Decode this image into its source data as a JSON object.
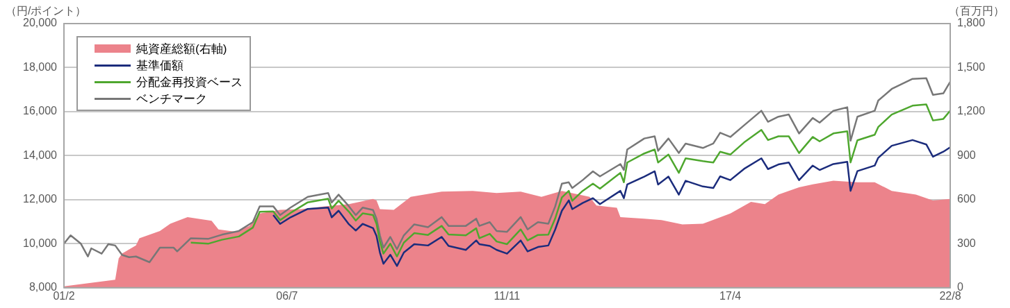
{
  "chart_data": {
    "type": "line",
    "ylabel": "（円/ポイント）",
    "y2label": "（百万円）",
    "xlim": [
      "2001-02",
      "2022-08"
    ],
    "xticks": [
      {
        "value": "2001-02",
        "label": "01/2"
      },
      {
        "value": "2006-07",
        "label": "06/7"
      },
      {
        "value": "2011-11",
        "label": "11/11"
      },
      {
        "value": "2017-04",
        "label": "17/4"
      },
      {
        "value": "2022-08",
        "label": "22/8"
      }
    ],
    "ylim": [
      8000,
      20000
    ],
    "yticks": [
      {
        "value": 8000,
        "label": "8,000"
      },
      {
        "value": 10000,
        "label": "10,000"
      },
      {
        "value": 12000,
        "label": "12,000"
      },
      {
        "value": 14000,
        "label": "14,000"
      },
      {
        "value": 16000,
        "label": "16,000"
      },
      {
        "value": 18000,
        "label": "18,000"
      },
      {
        "value": 20000,
        "label": "20,000"
      }
    ],
    "y2lim": [
      0,
      1800
    ],
    "y2ticks": [
      0,
      300,
      600,
      900,
      {
        "value": 1200,
        "label": "1,200"
      },
      {
        "value": 1500,
        "label": "1,500"
      },
      {
        "value": 1800,
        "label": "1,800"
      }
    ],
    "grid": "y",
    "legend": "top left",
    "series": [
      {
        "name": "純資産総額(右軸)",
        "type": "area",
        "axis": "y2",
        "color": "#ec838b",
        "x": [
          "2001-02",
          "2002-05",
          "2002-06",
          "2002-07",
          "2002-11",
          "2002-12",
          "2003-06",
          "2003-09",
          "2004-02",
          "2004-05",
          "2004-09",
          "2004-11",
          "2005-04",
          "2005-08",
          "2005-11",
          "2006-05",
          "2006-11",
          "2007-06",
          "2008-01",
          "2008-08",
          "2008-09",
          "2008-10",
          "2009-02",
          "2009-07",
          "2010-04",
          "2011-01",
          "2011-08",
          "2012-03",
          "2012-09",
          "2013-03",
          "2013-11",
          "2014-01",
          "2014-07",
          "2014-08",
          "2015-03",
          "2015-08",
          "2016-02",
          "2016-08",
          "2017-04",
          "2017-10",
          "2018-02",
          "2018-06",
          "2018-12",
          "2019-04",
          "2019-10",
          "2020-05",
          "2020-10",
          "2021-03",
          "2021-10",
          "2022-03",
          "2022-08"
        ],
        "values": [
          10,
          55,
          200,
          233,
          288,
          337,
          387,
          436,
          481,
          471,
          456,
          397,
          382,
          421,
          506,
          531,
          536,
          555,
          570,
          605,
          595,
          536,
          531,
          620,
          655,
          660,
          645,
          655,
          620,
          660,
          620,
          560,
          545,
          481,
          471,
          461,
          431,
          436,
          506,
          585,
          570,
          635,
          684,
          704,
          729,
          719,
          719,
          660,
          635,
          595,
          605
        ]
      },
      {
        "name": "基準価額",
        "type": "line",
        "color": "#1b2c7c",
        "x": [
          "2006-03",
          "2006-05",
          "2006-08",
          "2007-01",
          "2007-07",
          "2007-08",
          "2007-10",
          "2008-01",
          "2008-03",
          "2008-05",
          "2008-08",
          "2008-09",
          "2008-10",
          "2008-11",
          "2009-01",
          "2009-03",
          "2009-05",
          "2009-08",
          "2009-12",
          "2010-04",
          "2010-06",
          "2010-11",
          "2011-02",
          "2011-03",
          "2011-06",
          "2011-08",
          "2011-11",
          "2012-03",
          "2012-05",
          "2012-08",
          "2012-11",
          "2013-01",
          "2013-03",
          "2013-05",
          "2013-06",
          "2013-09",
          "2013-12",
          "2014-02",
          "2014-08",
          "2014-09",
          "2014-10",
          "2015-03",
          "2015-06",
          "2015-07",
          "2015-10",
          "2016-01",
          "2016-03",
          "2016-08",
          "2016-11",
          "2017-01",
          "2017-04",
          "2017-08",
          "2018-01",
          "2018-03",
          "2018-06",
          "2018-09",
          "2018-12",
          "2019-04",
          "2019-06",
          "2019-10",
          "2020-02",
          "2020-03",
          "2020-05",
          "2020-10",
          "2020-11",
          "2021-03",
          "2021-09",
          "2022-01",
          "2022-03",
          "2022-06",
          "2022-08"
        ],
        "values": [
          11300,
          10900,
          11200,
          11580,
          11640,
          11200,
          11500,
          10880,
          10600,
          10900,
          10710,
          10350,
          9600,
          9090,
          9500,
          8990,
          9600,
          9980,
          9920,
          10310,
          9900,
          9720,
          10150,
          9980,
          9900,
          9720,
          9550,
          10150,
          9650,
          9850,
          9920,
          10650,
          11500,
          11970,
          11570,
          11850,
          12070,
          11800,
          12400,
          12070,
          12690,
          13050,
          13290,
          12690,
          13050,
          12230,
          12860,
          12600,
          12530,
          13060,
          12890,
          13400,
          13880,
          13390,
          13600,
          13690,
          12890,
          13550,
          13350,
          13620,
          13720,
          12400,
          13300,
          13550,
          13900,
          14450,
          14710,
          14510,
          13950,
          14180,
          14380
        ]
      },
      {
        "name": "分配金再投資ベース",
        "type": "line",
        "color": "#4ea72e",
        "x": [
          "2004-03",
          "2004-08",
          "2004-12",
          "2005-05",
          "2005-09",
          "2005-11",
          "2006-03",
          "2006-05",
          "2006-08",
          "2007-01",
          "2007-07",
          "2007-08",
          "2007-10",
          "2008-01",
          "2008-03",
          "2008-05",
          "2008-08",
          "2008-09",
          "2008-10",
          "2008-11",
          "2009-01",
          "2009-03",
          "2009-05",
          "2009-08",
          "2009-12",
          "2010-04",
          "2010-06",
          "2010-11",
          "2011-02",
          "2011-03",
          "2011-06",
          "2011-08",
          "2011-11",
          "2012-03",
          "2012-05",
          "2012-08",
          "2012-11",
          "2013-01",
          "2013-03",
          "2013-05",
          "2013-06",
          "2013-09",
          "2013-12",
          "2014-02",
          "2014-08",
          "2014-09",
          "2014-10",
          "2015-03",
          "2015-06",
          "2015-07",
          "2015-10",
          "2016-01",
          "2016-03",
          "2016-08",
          "2016-11",
          "2017-01",
          "2017-04",
          "2017-08",
          "2018-01",
          "2018-03",
          "2018-06",
          "2018-09",
          "2018-12",
          "2019-04",
          "2019-06",
          "2019-10",
          "2020-02",
          "2020-03",
          "2020-05",
          "2020-10",
          "2020-11",
          "2021-03",
          "2021-09",
          "2022-01",
          "2022-03",
          "2022-06",
          "2022-08"
        ],
        "values": [
          10050,
          10000,
          10180,
          10330,
          10730,
          11450,
          11470,
          11070,
          11400,
          11880,
          12040,
          11600,
          11950,
          11450,
          11050,
          11380,
          11300,
          10900,
          10100,
          9550,
          10000,
          9420,
          10050,
          10480,
          10400,
          10810,
          10420,
          10380,
          10700,
          10250,
          10450,
          10100,
          9980,
          10650,
          10150,
          10400,
          10410,
          11150,
          12100,
          12400,
          11950,
          12400,
          12730,
          12500,
          13220,
          12790,
          13690,
          14100,
          14280,
          13690,
          14050,
          13220,
          13880,
          13750,
          13690,
          14180,
          14050,
          14600,
          15170,
          14710,
          14880,
          14880,
          14120,
          14850,
          14650,
          15010,
          15110,
          13690,
          14700,
          14950,
          15300,
          15870,
          16270,
          16330,
          15600,
          15670,
          16040
        ]
      },
      {
        "name": "ベンチマーク",
        "type": "line",
        "color": "#777777",
        "x": [
          "2001-02",
          "2001-04",
          "2001-07",
          "2001-09",
          "2001-10",
          "2002-01",
          "2002-03",
          "2002-05",
          "2002-07",
          "2002-09",
          "2002-11",
          "2003-03",
          "2003-06",
          "2003-10",
          "2003-11",
          "2004-03",
          "2004-08",
          "2004-12",
          "2005-05",
          "2005-09",
          "2005-11",
          "2006-03",
          "2006-05",
          "2006-08",
          "2007-01",
          "2007-07",
          "2007-08",
          "2007-10",
          "2008-01",
          "2008-03",
          "2008-05",
          "2008-08",
          "2008-09",
          "2008-10",
          "2008-11",
          "2009-01",
          "2009-03",
          "2009-05",
          "2009-08",
          "2009-12",
          "2010-04",
          "2010-06",
          "2010-11",
          "2011-02",
          "2011-03",
          "2011-06",
          "2011-08",
          "2011-11",
          "2012-03",
          "2012-05",
          "2012-08",
          "2012-11",
          "2013-01",
          "2013-03",
          "2013-05",
          "2013-06",
          "2013-09",
          "2013-12",
          "2014-02",
          "2014-08",
          "2014-09",
          "2014-10",
          "2015-03",
          "2015-06",
          "2015-07",
          "2015-10",
          "2016-01",
          "2016-03",
          "2016-08",
          "2016-11",
          "2017-01",
          "2017-04",
          "2017-08",
          "2018-01",
          "2018-03",
          "2018-06",
          "2018-09",
          "2018-12",
          "2019-04",
          "2019-06",
          "2019-10",
          "2020-02",
          "2020-03",
          "2020-05",
          "2020-10",
          "2020-11",
          "2021-03",
          "2021-09",
          "2022-01",
          "2022-03",
          "2022-06",
          "2022-08"
        ],
        "values": [
          10000,
          10380,
          10000,
          9420,
          9790,
          9550,
          9980,
          9920,
          9490,
          9390,
          9420,
          9160,
          9820,
          9820,
          9650,
          10250,
          10220,
          10410,
          10580,
          10980,
          11700,
          11700,
          11300,
          11640,
          12130,
          12300,
          11870,
          12230,
          11700,
          11300,
          11640,
          11530,
          11140,
          10380,
          9820,
          10310,
          9750,
          10380,
          10880,
          10750,
          11210,
          10810,
          10810,
          11140,
          10810,
          10980,
          10580,
          10540,
          11210,
          10650,
          10980,
          10910,
          11700,
          12730,
          12790,
          12530,
          12890,
          13290,
          13060,
          13620,
          13350,
          14280,
          14780,
          14880,
          14220,
          14780,
          14120,
          14550,
          14350,
          14550,
          15040,
          14850,
          15380,
          16040,
          15540,
          15770,
          15870,
          15010,
          15710,
          15500,
          16040,
          16200,
          14680,
          15770,
          16040,
          16500,
          17030,
          17490,
          17520,
          16760,
          16830,
          17360
        ]
      }
    ]
  }
}
